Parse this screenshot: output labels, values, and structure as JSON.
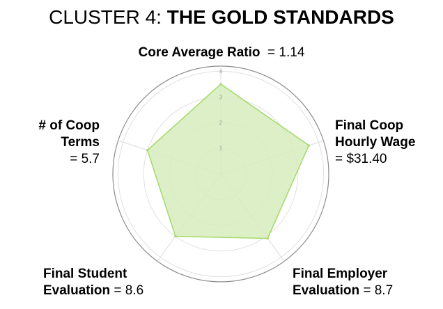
{
  "title": {
    "prefix": "CLUSTER 4: ",
    "bold": "THE GOLD STANDARDS"
  },
  "chart_data": {
    "type": "radar",
    "title": "CLUSTER 4: THE GOLD STANDARDS",
    "axes": [
      {
        "name": "Core Average Ratio",
        "value_text": "= 1.14"
      },
      {
        "name": "Final Coop Hourly Wage",
        "value_text": "= $31.40"
      },
      {
        "name": "Final Employer Evaluation",
        "value_text": "= 8.7"
      },
      {
        "name": "Final Student Evaluation",
        "value_text": "= 8.6"
      },
      {
        "name": "# of Coop Terms",
        "value_text": "= 5.7"
      }
    ],
    "values": [
      3.5,
      3.6,
      3.1,
      3.0,
      3.0
    ],
    "r_range": [
      0,
      4.2
    ],
    "r_ticks": [
      "1",
      "2",
      "3",
      "4"
    ],
    "grid": true,
    "fill_color": "#d7ecbc",
    "line_color": "#a3d96b"
  },
  "labels": {
    "top": {
      "bold": "Core Average Ratio",
      "rest": "  = 1.14"
    },
    "left": {
      "line1": "# of Coop",
      "line2": "Terms",
      "line3": "= 5.7"
    },
    "right": {
      "line1": "Final Coop",
      "line2": "Hourly Wage",
      "line3": "= $31.40"
    },
    "bottom_left": {
      "line1": "Final Student",
      "line2_bold": "Evaluation",
      "line2_rest": " = 8.6"
    },
    "bottom_right": {
      "line1": "Final Employer",
      "line2_bold": "Evaluation",
      "line2_rest": " = 8.7"
    }
  }
}
